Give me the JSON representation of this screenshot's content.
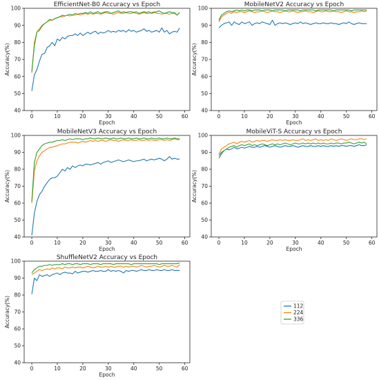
{
  "figure": {
    "legend": {
      "entries": [
        "112",
        "224",
        "336"
      ],
      "colors": [
        "#1f77b4",
        "#ff7f0e",
        "#2ca02c"
      ],
      "placement": "empty bottom-right panel"
    }
  },
  "chart_data": [
    {
      "type": "line",
      "title": "EfficientNet-B0 Accuracy vs Epoch",
      "xlabel": "Epoch",
      "ylabel": "Accuracy(%)",
      "xlim": [
        -3,
        62
      ],
      "ylim": [
        40,
        100
      ],
      "xticks": [
        0,
        10,
        20,
        30,
        40,
        50,
        60
      ],
      "yticks": [
        40,
        50,
        60,
        70,
        80,
        90,
        100
      ],
      "x_start": 0,
      "series": [
        {
          "name": "112",
          "color": "#1f77b4",
          "values": [
            51.5,
            61,
            64,
            69,
            73,
            73.5,
            77,
            78,
            80,
            78,
            82,
            81,
            83,
            82,
            83.5,
            84,
            84,
            85,
            84,
            85.5,
            84,
            85,
            86,
            85,
            86,
            86.5,
            85,
            86,
            85.5,
            86,
            87,
            86,
            86.5,
            86,
            87,
            86.5,
            87,
            86,
            87.5,
            86.5,
            87,
            86,
            86.5,
            87,
            88,
            86.5,
            87,
            86,
            86.5,
            87,
            86,
            88.5,
            86,
            87,
            85,
            86,
            86.5,
            86,
            88.5
          ]
        },
        {
          "name": "224",
          "color": "#ff7f0e",
          "values": [
            62,
            80,
            86,
            88,
            90,
            91,
            92,
            93,
            93,
            94,
            94.5,
            95,
            95,
            95.5,
            96,
            95.5,
            96,
            96,
            96.5,
            96,
            96.5,
            97,
            96.5,
            97,
            96.5,
            97,
            97,
            96.5,
            97,
            97.5,
            97,
            97,
            96.5,
            97,
            97.5,
            97,
            97,
            97.5,
            97,
            97,
            97.5,
            97,
            96.5,
            97,
            97.5,
            97,
            97,
            97.5,
            98,
            97,
            97,
            96.5,
            97,
            97,
            96.5,
            97,
            97,
            96,
            97.5
          ]
        },
        {
          "name": "336",
          "color": "#2ca02c",
          "values": [
            63,
            78,
            86,
            87,
            89.5,
            91,
            92,
            93.5,
            93,
            94,
            94.5,
            95,
            96,
            95.5,
            96,
            96.5,
            96,
            97,
            96.5,
            97,
            97,
            97.5,
            97,
            98,
            97,
            97.5,
            98,
            97,
            97.5,
            98,
            98,
            97,
            97.5,
            98,
            98.5,
            97.5,
            98,
            97.5,
            98,
            98,
            97.5,
            98,
            97,
            97.5,
            98,
            97.5,
            98,
            97,
            97.5,
            98,
            98.5,
            97.5,
            97,
            97.5,
            98,
            97.5,
            97.5,
            96,
            97.5
          ]
        }
      ]
    },
    {
      "type": "line",
      "title": "MobileNetV2 Accuracy vs Epoch",
      "xlabel": "Epoch",
      "ylabel": "Accuracy(%)",
      "xlim": [
        -3,
        62
      ],
      "ylim": [
        40,
        100
      ],
      "xticks": [
        0,
        10,
        20,
        30,
        40,
        50,
        60
      ],
      "yticks": [
        40,
        50,
        60,
        70,
        80,
        90,
        100
      ],
      "x_start": 0,
      "series": [
        {
          "name": "112",
          "color": "#1f77b4",
          "values": [
            88.5,
            90,
            91,
            91.5,
            92,
            90,
            92,
            91,
            90.5,
            92,
            91,
            91.5,
            92,
            90,
            91,
            91.5,
            91,
            92,
            91.5,
            91,
            90.5,
            93,
            90,
            91,
            91.5,
            91,
            91.5,
            91,
            90.5,
            91,
            91.5,
            91,
            92,
            91,
            91.5,
            91,
            90.5,
            91,
            91.5,
            91,
            91,
            91.5,
            91,
            91,
            91.5,
            91,
            91,
            90.5,
            91,
            91.5,
            91,
            92,
            91,
            90.5,
            91,
            91.5,
            91,
            91,
            91
          ]
        },
        {
          "name": "224",
          "color": "#ff7f0e",
          "values": [
            92,
            95,
            96,
            97,
            97.5,
            97,
            98,
            97.5,
            98,
            98,
            97.5,
            98,
            98.5,
            98,
            97.5,
            98,
            98,
            98.5,
            98,
            97.5,
            98,
            98.5,
            98,
            98,
            97.5,
            98,
            98.5,
            98,
            98,
            98.5,
            98,
            97.5,
            98,
            98,
            98.5,
            98,
            98,
            97.5,
            98,
            98.5,
            98,
            98,
            98.5,
            98,
            98,
            98.5,
            98,
            98,
            97.5,
            98,
            98.5,
            98,
            98,
            97.5,
            98,
            98,
            98.5,
            98,
            98.5
          ]
        },
        {
          "name": "336",
          "color": "#2ca02c",
          "values": [
            93,
            96,
            97,
            98,
            98.5,
            98,
            98.5,
            99,
            98.5,
            99,
            98.5,
            99,
            99,
            98.5,
            99,
            99,
            99,
            98.5,
            99,
            99,
            99,
            98.5,
            99,
            99,
            99,
            99,
            98.5,
            99,
            99,
            99,
            99,
            99,
            98.5,
            99,
            99,
            99,
            99,
            99,
            98.5,
            99,
            99,
            99,
            99,
            99,
            99,
            98.5,
            99,
            99,
            99,
            99,
            99,
            99,
            98.5,
            99,
            99,
            99,
            99,
            99,
            99
          ]
        }
      ]
    },
    {
      "type": "line",
      "title": "MobileNetV3 Accuracy vs Epoch",
      "xlabel": "Epoch",
      "ylabel": "Accuracy(%)",
      "xlim": [
        -3,
        62
      ],
      "ylim": [
        40,
        100
      ],
      "xticks": [
        0,
        10,
        20,
        30,
        40,
        50,
        60
      ],
      "yticks": [
        40,
        50,
        60,
        70,
        80,
        90,
        100
      ],
      "x_start": 0,
      "series": [
        {
          "name": "112",
          "color": "#1f77b4",
          "values": [
            41,
            54,
            61,
            65,
            67,
            70,
            72,
            74,
            75,
            75,
            76,
            78,
            80,
            79,
            81,
            80,
            82,
            81,
            82,
            82.5,
            82,
            83,
            83,
            82.5,
            83,
            83.5,
            84,
            83,
            84,
            84.5,
            85,
            84,
            84.5,
            85,
            85.5,
            85,
            84.5,
            85,
            85.5,
            85,
            84.5,
            85,
            85,
            85.5,
            86,
            85,
            85.5,
            86,
            85.5,
            86,
            86.5,
            86,
            85,
            86,
            87.5,
            86,
            86.5,
            86,
            86
          ]
        },
        {
          "name": "224",
          "color": "#ff7f0e",
          "values": [
            60,
            79,
            85,
            88,
            90,
            91,
            92,
            93,
            93,
            93.5,
            94,
            94.5,
            95,
            95,
            95.5,
            96,
            96,
            96,
            95.5,
            96,
            96.5,
            96,
            96.5,
            97,
            96.5,
            97,
            96.5,
            97,
            97,
            96.5,
            97,
            97.5,
            97,
            97,
            96.5,
            97,
            97.5,
            97,
            97,
            97.5,
            97,
            97,
            97.5,
            97,
            97,
            97.5,
            97,
            97.5,
            97,
            97,
            97.5,
            97.5,
            97,
            97.5,
            97,
            97.5,
            98,
            97.5,
            97.5
          ]
        },
        {
          "name": "336",
          "color": "#2ca02c",
          "values": [
            61,
            84,
            90,
            92,
            94,
            95,
            95.5,
            96,
            96,
            96.5,
            97,
            97,
            97.5,
            97,
            97.5,
            98,
            97.5,
            98,
            98,
            98,
            97.5,
            98,
            98,
            98.5,
            98,
            98,
            98.5,
            98,
            98,
            98.5,
            98,
            98,
            98.5,
            98,
            98,
            98.5,
            98,
            98,
            98.5,
            98,
            98,
            98.5,
            98,
            98,
            98.5,
            98,
            98,
            98.5,
            98,
            98,
            98.5,
            98,
            98,
            98.5,
            98,
            98,
            98.5,
            98,
            98
          ]
        }
      ]
    },
    {
      "type": "line",
      "title": "MobileViT-S Accuracy vs Epoch",
      "xlabel": "Epoch",
      "ylabel": "Accuracy(%)",
      "xlim": [
        -3,
        62
      ],
      "ylim": [
        40,
        100
      ],
      "xticks": [
        0,
        10,
        20,
        30,
        40,
        50,
        60
      ],
      "yticks": [
        40,
        50,
        60,
        70,
        80,
        90,
        100
      ],
      "x_start": 0,
      "series": [
        {
          "name": "112",
          "color": "#1f77b4",
          "values": [
            88,
            90,
            91,
            92,
            91.5,
            92,
            93,
            92,
            92.5,
            93,
            92.5,
            93,
            93.5,
            93,
            93,
            93.5,
            93,
            93.5,
            94,
            93.5,
            93,
            93.5,
            94,
            93.5,
            93,
            93.5,
            94,
            93.5,
            93.5,
            94,
            93.5,
            93,
            93.5,
            94,
            93.5,
            93.5,
            94,
            93.5,
            93.5,
            94,
            93.5,
            94,
            93.5,
            93.5,
            94,
            93.5,
            94,
            93.5,
            94,
            94,
            93.5,
            94,
            94,
            93.5,
            94,
            94.5,
            94,
            94,
            94.5
          ]
        },
        {
          "name": "224",
          "color": "#ff7f0e",
          "values": [
            89,
            92,
            93,
            94,
            95,
            95.5,
            96,
            95,
            96,
            96.5,
            96,
            96.5,
            97,
            96,
            96.5,
            97,
            96.5,
            97,
            97,
            96.5,
            97,
            97.5,
            97,
            97,
            97.5,
            97,
            97.5,
            97,
            97,
            97.5,
            97,
            97,
            97.5,
            98,
            97,
            97.5,
            97,
            97.5,
            98,
            97,
            97.5,
            97,
            97.5,
            97,
            98,
            97.5,
            97,
            97.5,
            98,
            97.5,
            97,
            97.5,
            98,
            97.5,
            97.5,
            98,
            98,
            97.5,
            98
          ]
        },
        {
          "name": "336",
          "color": "#2ca02c",
          "values": [
            86.5,
            89,
            91,
            92,
            93,
            93.5,
            94,
            93,
            94,
            94.5,
            94,
            94.5,
            95,
            94,
            94.5,
            94,
            94.5,
            95,
            94.5,
            94,
            94.5,
            95,
            94.5,
            95,
            94.5,
            95,
            95.5,
            95,
            94.5,
            95,
            95.5,
            95,
            95,
            95.5,
            95,
            95.5,
            95,
            95.5,
            95,
            95.5,
            95,
            95.5,
            95,
            95,
            95.5,
            95,
            95.5,
            95.5,
            95,
            95.5,
            95.5,
            96,
            95.5,
            95,
            95.5,
            96,
            95.5,
            96,
            95
          ]
        }
      ]
    },
    {
      "type": "line",
      "title": "ShuffleNetV2 Accuracy vs Epoch",
      "xlabel": "Epoch",
      "ylabel": "Accuracy(%)",
      "xlim": [
        -3,
        62
      ],
      "ylim": [
        40,
        100
      ],
      "xticks": [
        0,
        10,
        20,
        30,
        40,
        50,
        60
      ],
      "yticks": [
        40,
        50,
        60,
        70,
        80,
        90,
        100
      ],
      "x_start": 0,
      "series": [
        {
          "name": "112",
          "color": "#1f77b4",
          "values": [
            80.5,
            90,
            88.5,
            92,
            91,
            91.5,
            92,
            91,
            92,
            92.5,
            93,
            92,
            93,
            93.5,
            93,
            93,
            92.5,
            94,
            93,
            93.5,
            94,
            94,
            93.5,
            94,
            94.5,
            94,
            94,
            94.5,
            94,
            94,
            95,
            94,
            94.5,
            94,
            94.5,
            94,
            93,
            94.5,
            94,
            94.5,
            94.5,
            94,
            94.5,
            95,
            94.5,
            94.5,
            95,
            94.5,
            94.5,
            95,
            94.5,
            94.5,
            95,
            94.5,
            94.5,
            95,
            94.5,
            94.5,
            94.5
          ]
        },
        {
          "name": "224",
          "color": "#ff7f0e",
          "values": [
            92,
            93,
            94,
            95,
            94.5,
            95,
            95.5,
            95,
            96,
            95.5,
            96,
            96,
            95.5,
            96.5,
            96,
            96,
            96.5,
            96,
            96.5,
            96.5,
            96,
            96.5,
            97,
            96.5,
            96,
            96.5,
            97,
            96.5,
            96.5,
            97,
            96.5,
            97,
            96.5,
            96.5,
            97,
            97,
            96.5,
            97,
            96.5,
            97,
            97,
            96.5,
            97,
            97.5,
            97,
            96.5,
            97,
            97,
            97.5,
            97,
            96.5,
            97,
            97.5,
            97,
            97,
            97.5,
            97,
            96.5,
            98
          ]
        },
        {
          "name": "336",
          "color": "#2ca02c",
          "values": [
            93,
            95,
            96,
            97,
            97,
            97.5,
            97.5,
            98,
            97.5,
            98,
            98,
            98,
            98.5,
            98,
            98.5,
            98.5,
            98,
            98.5,
            98.5,
            98,
            98.5,
            98.5,
            98.5,
            98,
            98.5,
            98.5,
            98.5,
            98,
            98.5,
            98.5,
            98.5,
            98.5,
            98,
            98.5,
            98.5,
            98.5,
            98.5,
            98.5,
            98.5,
            98,
            98.5,
            98.5,
            98.5,
            98.5,
            98.5,
            98.5,
            98.5,
            98.5,
            98.5,
            98.5,
            98,
            98.5,
            98.5,
            98.5,
            98.5,
            98.5,
            98.5,
            98.5,
            99
          ]
        }
      ]
    }
  ]
}
